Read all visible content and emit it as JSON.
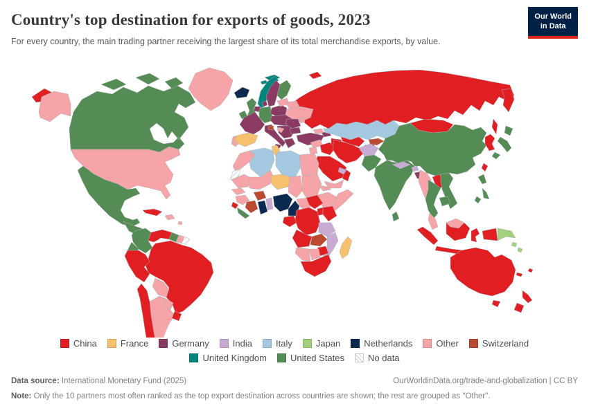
{
  "header": {
    "title": "Country's top destination for exports of goods, 2023",
    "subtitle": "For every country, the main trading partner receiving the largest share of its total merchandise exports, by value.",
    "logo": {
      "line1": "Our World",
      "line2": "in Data",
      "bg_color": "#002147",
      "accent_color": "#dc2b1e"
    }
  },
  "legend": {
    "items": [
      {
        "label": "China",
        "color": "#e11f23"
      },
      {
        "label": "France",
        "color": "#f7c06e"
      },
      {
        "label": "Germany",
        "color": "#8b3a62"
      },
      {
        "label": "India",
        "color": "#c8aad2"
      },
      {
        "label": "Italy",
        "color": "#a5c8e1"
      },
      {
        "label": "Japan",
        "color": "#a4d07c"
      },
      {
        "label": "Netherlands",
        "color": "#0c2a50"
      },
      {
        "label": "Other",
        "color": "#f6a4a7"
      },
      {
        "label": "Switzerland",
        "color": "#bb4a31"
      },
      {
        "label": "United Kingdom",
        "color": "#02857c"
      },
      {
        "label": "United States",
        "color": "#558b54"
      }
    ],
    "no_data_label": "No data"
  },
  "map": {
    "regions": {
      "chukotka": "China",
      "alaska": "Other",
      "canada": "United States",
      "arctic-islands-1": "United States",
      "arctic-islands-2": "United States",
      "arctic-islands-3": "United States",
      "greenland": "Other",
      "united-states": "Other",
      "mexico": "United States",
      "central-america": "United States",
      "panama": "China",
      "cuba": "China",
      "hispaniola": "Other",
      "caribbean": "Other",
      "colombia": "United States",
      "venezuela": "China",
      "guyana": "United States",
      "suriname": "Other",
      "french-guiana": "No data",
      "ecuador": "United States",
      "peru": "China",
      "brazil": "China",
      "bolivia": "Other",
      "paraguay": "Other",
      "chile": "China",
      "argentina": "Other",
      "uruguay": "China",
      "iceland": "Netherlands",
      "svalbard": "United Kingdom",
      "norway": "United Kingdom",
      "sweden": "Germany",
      "finland": "United States",
      "denmark": "Germany",
      "united-kingdom": "United States",
      "ireland": "United States",
      "france": "Germany",
      "low-countries": "Germany",
      "germany": "United States",
      "poland": "Germany",
      "baltic-states": "Other",
      "belarus": "Other",
      "ukraine": "Other",
      "moldova": "Other",
      "central-europe": "Germany",
      "italy": "Germany",
      "sicily": "Germany",
      "spain": "France",
      "portugal": "Other",
      "slovenia": "Switzerland",
      "balkans": "Germany",
      "bosnia": "Other",
      "greece": "Germany",
      "romania": "Germany",
      "bulgaria": "Germany",
      "turkey": "Germany",
      "georgia": "Other",
      "azerbaijan": "Germany",
      "russia": "China",
      "kamchatka": "China",
      "sakhalin": "China",
      "novaya-zemlya": "China",
      "kazakhstan": "Italy",
      "uzbekistan": "China",
      "turkmenistan": "China",
      "kyrgyzstan": "Switzerland",
      "tajikistan": "Switzerland",
      "afghanistan": "India",
      "pakistan": "United States",
      "syria": "Other",
      "levant": "Other",
      "iraq": "China",
      "iran": "China",
      "saudi-arabia": "China",
      "yemen": "Other",
      "oman": "China",
      "uae": "India",
      "india": "United States",
      "nepal": "India",
      "bhutan": "India",
      "bangladesh": "Germany",
      "sri-lanka": "United States",
      "china": "United States",
      "mongolia": "China",
      "korea": "China",
      "japan-hokkaido": "United States",
      "japan-honshu": "United States",
      "japan-kyushu": "United States",
      "taiwan": "China",
      "myanmar": "Other",
      "laos": "China",
      "thailand": "United States",
      "vietnam": "United States",
      "cambodia": "United States",
      "malaysia": "Other",
      "sumatra": "China",
      "java": "China",
      "malaysia-borneo": "Other",
      "indonesia-borneo": "China",
      "sulawesi": "China",
      "indonesia-papua": "China",
      "papua-new-guinea": "Japan",
      "solomon-1": "Japan",
      "solomon-2": "Japan",
      "philippines-1": "United States",
      "philippines-2": "United States",
      "philippines-3": "United States",
      "australia": "China",
      "tasmania": "China",
      "new-zealand-north": "China",
      "new-zealand-south": "China",
      "new-caledonia": "China",
      "fiji": "China",
      "morocco": "Other",
      "western-sahara": "No data",
      "algeria": "Italy",
      "tunisia": "France",
      "libya": "Italy",
      "egypt": "Other",
      "mauritania": "Other",
      "mali": "Other",
      "niger": "France",
      "chad": "Other",
      "sudan": "Other",
      "eritrea": "Other",
      "ethiopia": "Other",
      "somalia": "Other",
      "senegal": "Other",
      "guinea": "Other",
      "sierra-leone": "China",
      "liberia": "United States",
      "cote-divoire": "Switzerland",
      "burkina-faso": "Switzerland",
      "ghana": "Netherlands",
      "togo-benin": "India",
      "nigeria": "Netherlands",
      "cameroon": "Netherlands",
      "central-african-republic": "Other",
      "south-sudan": "China",
      "uganda": "China",
      "kenya": "China",
      "gabon-congo": "China",
      "drc": "China",
      "angola": "China",
      "zambia": "Switzerland",
      "tanzania": "India",
      "mozambique": "India",
      "zimbabwe": "China",
      "botswana": "Other",
      "namibia": "Other",
      "south-africa": "China",
      "madagascar": "France"
    }
  },
  "footer": {
    "source_label": "Data source:",
    "source_text": " International Monetary Fund (2025)",
    "link_text": "OurWorldinData.org/trade-and-globalization | CC BY",
    "note_label": "Note:",
    "note_text": " Only the 10 partners most often ranked as the top export destination across countries are shown; the rest are grouped as \"Other\"."
  }
}
